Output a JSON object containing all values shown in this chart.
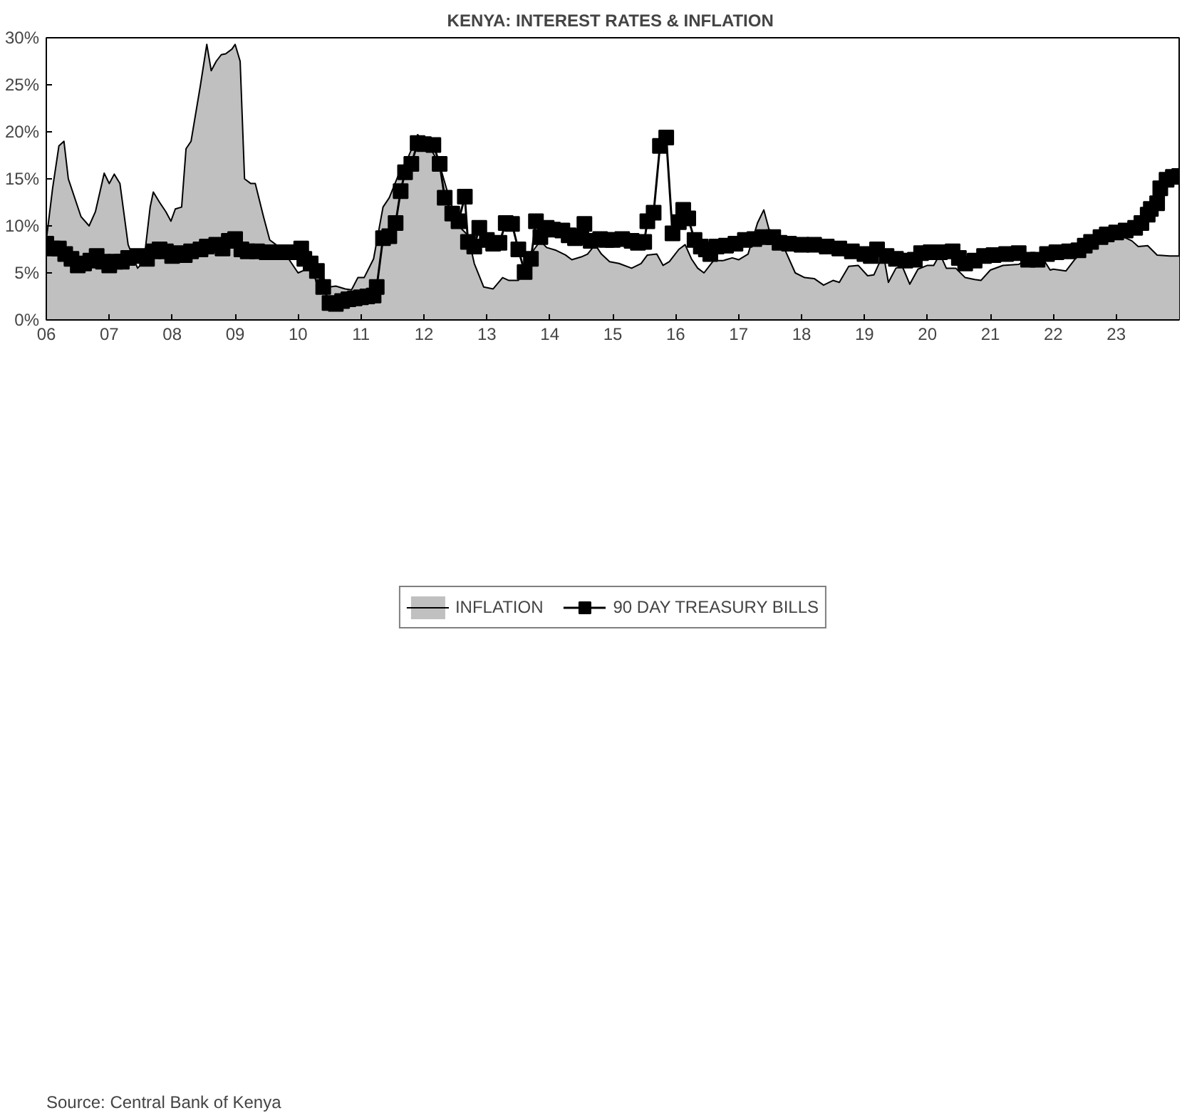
{
  "chart_data": {
    "type": "line",
    "title": "KENYA: INTEREST RATES  & INFLATION",
    "xlim": [
      2006,
      2024
    ],
    "ylim": [
      0,
      30
    ],
    "xticks": [
      {
        "value": 2006,
        "label": "06"
      },
      {
        "value": 2007,
        "label": "07"
      },
      {
        "value": 2008,
        "label": "08"
      },
      {
        "value": 2009,
        "label": "09"
      },
      {
        "value": 2010,
        "label": "10"
      },
      {
        "value": 2011,
        "label": "11"
      },
      {
        "value": 2012,
        "label": "12"
      },
      {
        "value": 2013,
        "label": "13"
      },
      {
        "value": 2014,
        "label": "14"
      },
      {
        "value": 2015,
        "label": "15"
      },
      {
        "value": 2016,
        "label": "16"
      },
      {
        "value": 2017,
        "label": "17"
      },
      {
        "value": 2018,
        "label": "18"
      },
      {
        "value": 2019,
        "label": "19"
      },
      {
        "value": 2020,
        "label": "20"
      },
      {
        "value": 2021,
        "label": "21"
      },
      {
        "value": 2022,
        "label": "22"
      },
      {
        "value": 2023,
        "label": "23"
      }
    ],
    "yticks": [
      {
        "value": 0,
        "label": "0%"
      },
      {
        "value": 5,
        "label": "5%"
      },
      {
        "value": 10,
        "label": "10%"
      },
      {
        "value": 15,
        "label": "15%"
      },
      {
        "value": 20,
        "label": "20%"
      },
      {
        "value": 25,
        "label": "25%"
      },
      {
        "value": 30,
        "label": "30%"
      }
    ],
    "grid": false,
    "legend": "bottom",
    "annotations": [
      "Source: Central Bank of  Kenya"
    ],
    "series": [
      {
        "name": "INFLATION",
        "type": "area",
        "color": "#c0c0c0",
        "marker": "none",
        "x": [
          2006.0,
          2006.1,
          2006.2,
          2006.28,
          2006.35,
          2006.55,
          2006.68,
          2006.78,
          2006.92,
          2007.0,
          2007.08,
          2007.17,
          2007.3,
          2007.45,
          2007.55,
          2007.65,
          2007.7,
          2007.8,
          2007.9,
          2007.98,
          2008.05,
          2008.15,
          2008.22,
          2008.3,
          2008.45,
          2008.55,
          2008.62,
          2008.7,
          2008.78,
          2008.85,
          2008.95,
          2009.0,
          2009.08,
          2009.15,
          2009.25,
          2009.32,
          2009.45,
          2009.55,
          2009.65,
          2009.75,
          2009.85,
          2010.0,
          2010.1,
          2010.2,
          2010.3,
          2010.4,
          2010.5,
          2010.6,
          2010.75,
          2010.85,
          2010.95,
          2011.05,
          2011.2,
          2011.35,
          2011.45,
          2011.6,
          2011.75,
          2011.9,
          2012.0,
          2012.1,
          2012.25,
          2012.4,
          2012.55,
          2012.7,
          2012.8,
          2012.95,
          2013.1,
          2013.25,
          2013.35,
          2013.5,
          2013.6,
          2013.75,
          2013.85,
          2013.95,
          2014.1,
          2014.25,
          2014.35,
          2014.5,
          2014.6,
          2014.72,
          2014.82,
          2014.95,
          2015.1,
          2015.3,
          2015.45,
          2015.55,
          2015.7,
          2015.8,
          2015.9,
          2016.05,
          2016.15,
          2016.25,
          2016.35,
          2016.45,
          2016.6,
          2016.75,
          2016.9,
          2017.0,
          2017.15,
          2017.3,
          2017.4,
          2017.5,
          2017.6,
          2017.7,
          2017.9,
          2018.05,
          2018.2,
          2018.35,
          2018.5,
          2018.6,
          2018.75,
          2018.9,
          2019.05,
          2019.15,
          2019.3,
          2019.38,
          2019.5,
          2019.6,
          2019.72,
          2019.85,
          2020.0,
          2020.1,
          2020.2,
          2020.3,
          2020.45,
          2020.6,
          2020.75,
          2020.85,
          2021.0,
          2021.2,
          2021.45,
          2021.6,
          2021.8,
          2021.95,
          2022.0,
          2022.2,
          2022.35,
          2022.5,
          2022.8,
          2023.0,
          2023.25,
          2023.35,
          2023.5,
          2023.65,
          2023.85,
          2024.0
        ],
        "values": [
          8.5,
          14,
          18.5,
          19.0,
          15,
          11,
          10.0,
          11.5,
          15.6,
          14.5,
          15.5,
          14.5,
          8,
          5.5,
          6.2,
          12,
          13.6,
          12.5,
          11.5,
          10.5,
          11.8,
          12,
          18.2,
          19,
          25,
          29.3,
          26.5,
          27.5,
          28.2,
          28.3,
          28.8,
          29.3,
          27.5,
          15,
          14.5,
          14.5,
          11,
          8.5,
          8,
          7,
          6.5,
          5.0,
          5.3,
          6.0,
          3.8,
          4.5,
          3.5,
          3.6,
          3.3,
          3.2,
          4.5,
          4.5,
          6.5,
          12,
          13,
          15.5,
          17.3,
          19.7,
          19.0,
          18.3,
          16.5,
          13,
          10.0,
          9.0,
          6,
          3.5,
          3.3,
          4.5,
          4.2,
          4.2,
          5.3,
          7.5,
          8.4,
          7.7,
          7.4,
          6.9,
          6.4,
          6.7,
          7.0,
          8.0,
          7.0,
          6.2,
          6.0,
          5.5,
          6.0,
          6.9,
          7.0,
          5.8,
          6.2,
          7.5,
          8.0,
          6.5,
          5.5,
          5.0,
          6.3,
          6.3,
          6.6,
          6.4,
          7.0,
          10.3,
          11.7,
          9.2,
          7.5,
          8.0,
          5.0,
          4.5,
          4.4,
          3.7,
          4.2,
          4.0,
          5.7,
          5.8,
          4.7,
          4.8,
          7.0,
          4.0,
          5.5,
          5.7,
          3.8,
          5.4,
          5.8,
          5.8,
          7.0,
          5.5,
          5.5,
          4.5,
          4.3,
          4.2,
          5.3,
          5.8,
          5.9,
          6.5,
          6.9,
          5.3,
          5.4,
          5.2,
          6.5,
          8.0,
          9.2,
          9.2,
          8.4,
          7.8,
          7.9,
          6.9,
          6.8,
          6.8
        ]
      },
      {
        "name": "90 DAY TREASURY BILLS",
        "color": "#000000",
        "marker": "square",
        "x": [
          2006.0,
          2006.1,
          2006.2,
          2006.3,
          2006.4,
          2006.5,
          2006.6,
          2006.7,
          2006.8,
          2006.9,
          2007.0,
          2007.1,
          2007.2,
          2007.3,
          2007.45,
          2007.6,
          2007.7,
          2007.8,
          2007.9,
          2008.0,
          2008.1,
          2008.2,
          2008.3,
          2008.45,
          2008.55,
          2008.7,
          2008.8,
          2008.9,
          2009.0,
          2009.1,
          2009.2,
          2009.35,
          2009.5,
          2009.65,
          2009.8,
          2009.9,
          2010.0,
          2010.05,
          2010.1,
          2010.2,
          2010.3,
          2010.4,
          2010.5,
          2010.6,
          2010.7,
          2010.8,
          2010.9,
          2011.0,
          2011.1,
          2011.2,
          2011.25,
          2011.35,
          2011.45,
          2011.55,
          2011.63,
          2011.7,
          2011.8,
          2011.9,
          2012.0,
          2012.15,
          2012.25,
          2012.33,
          2012.45,
          2012.55,
          2012.65,
          2012.7,
          2012.8,
          2012.88,
          2013.0,
          2013.1,
          2013.2,
          2013.3,
          2013.4,
          2013.5,
          2013.6,
          2013.7,
          2013.78,
          2013.85,
          2013.95,
          2014.05,
          2014.2,
          2014.3,
          2014.4,
          2014.5,
          2014.55,
          2014.65,
          2014.8,
          2014.9,
          2015.0,
          2015.15,
          2015.3,
          2015.4,
          2015.5,
          2015.55,
          2015.65,
          2015.75,
          2015.85,
          2015.95,
          2016.05,
          2016.12,
          2016.2,
          2016.3,
          2016.4,
          2016.48,
          2016.55,
          2016.65,
          2016.8,
          2016.95,
          2017.1,
          2017.25,
          2017.4,
          2017.55,
          2017.65,
          2017.8,
          2018.0,
          2018.2,
          2018.4,
          2018.6,
          2018.8,
          2019.0,
          2019.1,
          2019.2,
          2019.35,
          2019.5,
          2019.65,
          2019.8,
          2019.9,
          2020.05,
          2020.2,
          2020.4,
          2020.5,
          2020.6,
          2020.75,
          2020.9,
          2021.05,
          2021.25,
          2021.45,
          2021.6,
          2021.75,
          2021.9,
          2022.05,
          2022.25,
          2022.4,
          2022.5,
          2022.6,
          2022.75,
          2022.85,
          2023.0,
          2023.15,
          2023.3,
          2023.4,
          2023.5,
          2023.55,
          2023.65,
          2023.7,
          2023.8,
          2023.9,
          2024.0
        ],
        "values": [
          8.1,
          7.6,
          7.6,
          7.0,
          6.5,
          5.8,
          6.0,
          6.3,
          6.8,
          6.2,
          5.8,
          6.2,
          6.2,
          6.6,
          6.8,
          6.5,
          7.3,
          7.5,
          7.3,
          6.8,
          7.1,
          6.9,
          7.3,
          7.5,
          7.8,
          8.0,
          7.6,
          8.4,
          8.6,
          7.5,
          7.3,
          7.3,
          7.2,
          7.2,
          7.2,
          7.2,
          7.2,
          7.6,
          6.5,
          6.0,
          5.2,
          3.5,
          1.8,
          1.7,
          2.0,
          2.2,
          2.3,
          2.4,
          2.5,
          2.6,
          3.5,
          8.7,
          8.9,
          10.3,
          13.7,
          15.7,
          16.6,
          18.8,
          18.7,
          18.6,
          16.6,
          13.0,
          11.3,
          10.5,
          13.1,
          8.3,
          7.8,
          9.8,
          8.5,
          8.1,
          8.2,
          10.3,
          10.2,
          7.5,
          5.1,
          6.5,
          10.5,
          8.8,
          9.8,
          9.6,
          9.5,
          9.0,
          8.7,
          8.9,
          10.2,
          8.4,
          8.6,
          8.5,
          8.5,
          8.6,
          8.4,
          8.2,
          8.3,
          10.5,
          11.4,
          18.5,
          19.4,
          9.2,
          10.4,
          11.7,
          10.8,
          8.5,
          7.8,
          7.5,
          7.0,
          7.8,
          7.9,
          8.1,
          8.5,
          8.6,
          8.8,
          8.8,
          8.2,
          8.1,
          8.0,
          8.0,
          7.8,
          7.6,
          7.3,
          7.0,
          6.8,
          7.5,
          6.8,
          6.5,
          6.3,
          6.4,
          7.1,
          7.2,
          7.2,
          7.3,
          6.6,
          6.0,
          6.3,
          6.8,
          6.9,
          7.0,
          7.1,
          6.4,
          6.4,
          7.0,
          7.2,
          7.3,
          7.4,
          7.9,
          8.3,
          8.8,
          9.1,
          9.3,
          9.5,
          9.8,
          10.3,
          11.2,
          11.8,
          12.4,
          14.0,
          14.9,
          15.2,
          15.3
        ]
      }
    ]
  }
}
